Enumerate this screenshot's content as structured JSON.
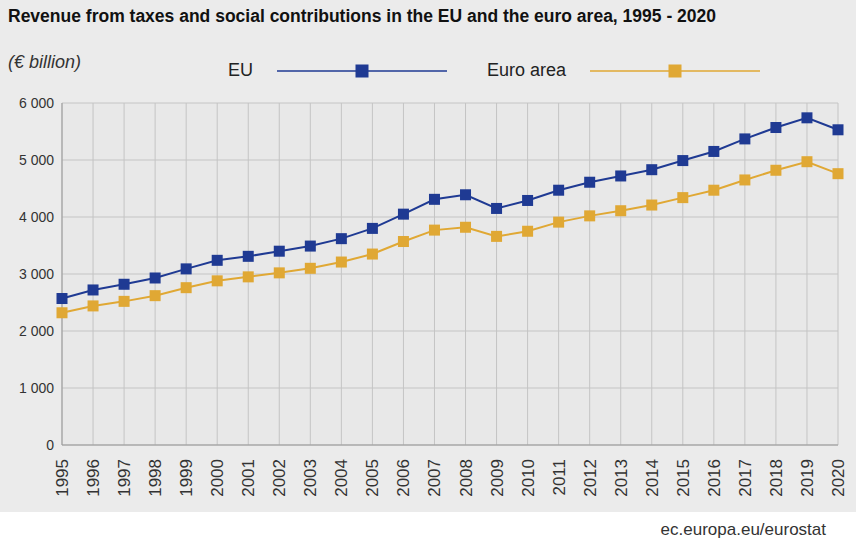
{
  "chart_data": {
    "type": "line",
    "title": "Revenue from taxes and social contributions in the EU and the euro area, 1995 - 2020",
    "subtitle": "(€ billion)",
    "annotations": [
      "ec.europa.eu/eurostat"
    ],
    "categories": [
      "1995",
      "1996",
      "1997",
      "1998",
      "1999",
      "2000",
      "2001",
      "2002",
      "2003",
      "2004",
      "2005",
      "2006",
      "2007",
      "2008",
      "2009",
      "2010",
      "2011",
      "2012",
      "2013",
      "2014",
      "2015",
      "2016",
      "2017",
      "2018",
      "2019",
      "2020"
    ],
    "series": [
      {
        "name": "EU",
        "color": "#1f3a93",
        "marker": "square",
        "values": [
          2570,
          2720,
          2820,
          2930,
          3090,
          3240,
          3310,
          3400,
          3490,
          3620,
          3800,
          4050,
          4310,
          4390,
          4150,
          4290,
          4470,
          4610,
          4720,
          4830,
          4990,
          5150,
          5370,
          5570,
          5740,
          5530
        ]
      },
      {
        "name": "Euro area",
        "color": "#e0a834",
        "marker": "square",
        "values": [
          2320,
          2440,
          2520,
          2620,
          2760,
          2880,
          2950,
          3020,
          3100,
          3210,
          3350,
          3570,
          3770,
          3820,
          3660,
          3750,
          3910,
          4020,
          4110,
          4210,
          4340,
          4470,
          4650,
          4820,
          4970,
          4760
        ]
      }
    ],
    "ylim": [
      0,
      6000
    ],
    "yticks": [
      0,
      {
        "value": 1000,
        "label": "1 000"
      },
      {
        "value": 2000,
        "label": "2 000"
      },
      {
        "value": 3000,
        "label": "3 000"
      },
      {
        "value": 4000,
        "label": "4 000"
      },
      {
        "value": 5000,
        "label": "5 000"
      },
      {
        "value": 6000,
        "label": "6 000"
      }
    ],
    "grid": true,
    "legend": "top"
  }
}
